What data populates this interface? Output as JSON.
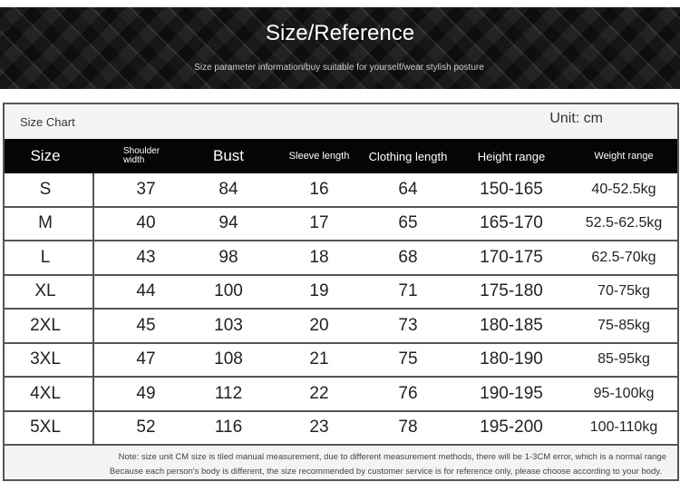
{
  "banner": {
    "title": "Size/Reference",
    "subtitle": "Size parameter information/buy suitable for yourself/wear stylish posture"
  },
  "chart": {
    "label": "Size Chart",
    "unit": "Unit: cm"
  },
  "headers": [
    "Size",
    "Shoulder width",
    "Bust",
    "Sleeve length",
    "Clothing length",
    "Height range",
    "Weight range"
  ],
  "rows": [
    [
      "S",
      "37",
      "84",
      "16",
      "64",
      "150-165",
      "40-52.5kg"
    ],
    [
      "M",
      "40",
      "94",
      "17",
      "65",
      "165-170",
      "52.5-62.5kg"
    ],
    [
      "L",
      "43",
      "98",
      "18",
      "68",
      "170-175",
      "62.5-70kg"
    ],
    [
      "XL",
      "44",
      "100",
      "19",
      "71",
      "175-180",
      "70-75kg"
    ],
    [
      "2XL",
      "45",
      "103",
      "20",
      "73",
      "180-185",
      "75-85kg"
    ],
    [
      "3XL",
      "47",
      "108",
      "21",
      "75",
      "180-190",
      "85-95kg"
    ],
    [
      "4XL",
      "49",
      "112",
      "22",
      "76",
      "190-195",
      "95-100kg"
    ],
    [
      "5XL",
      "52",
      "116",
      "23",
      "78",
      "195-200",
      "100-110kg"
    ]
  ],
  "notes": [
    "Note: size unit CM size is tiled manual measurement, due to different measurement methods, there will be 1-3CM error, which is a normal range",
    "Because each person's body is different, the size recommended by customer service is for reference only, please choose according to your body."
  ]
}
